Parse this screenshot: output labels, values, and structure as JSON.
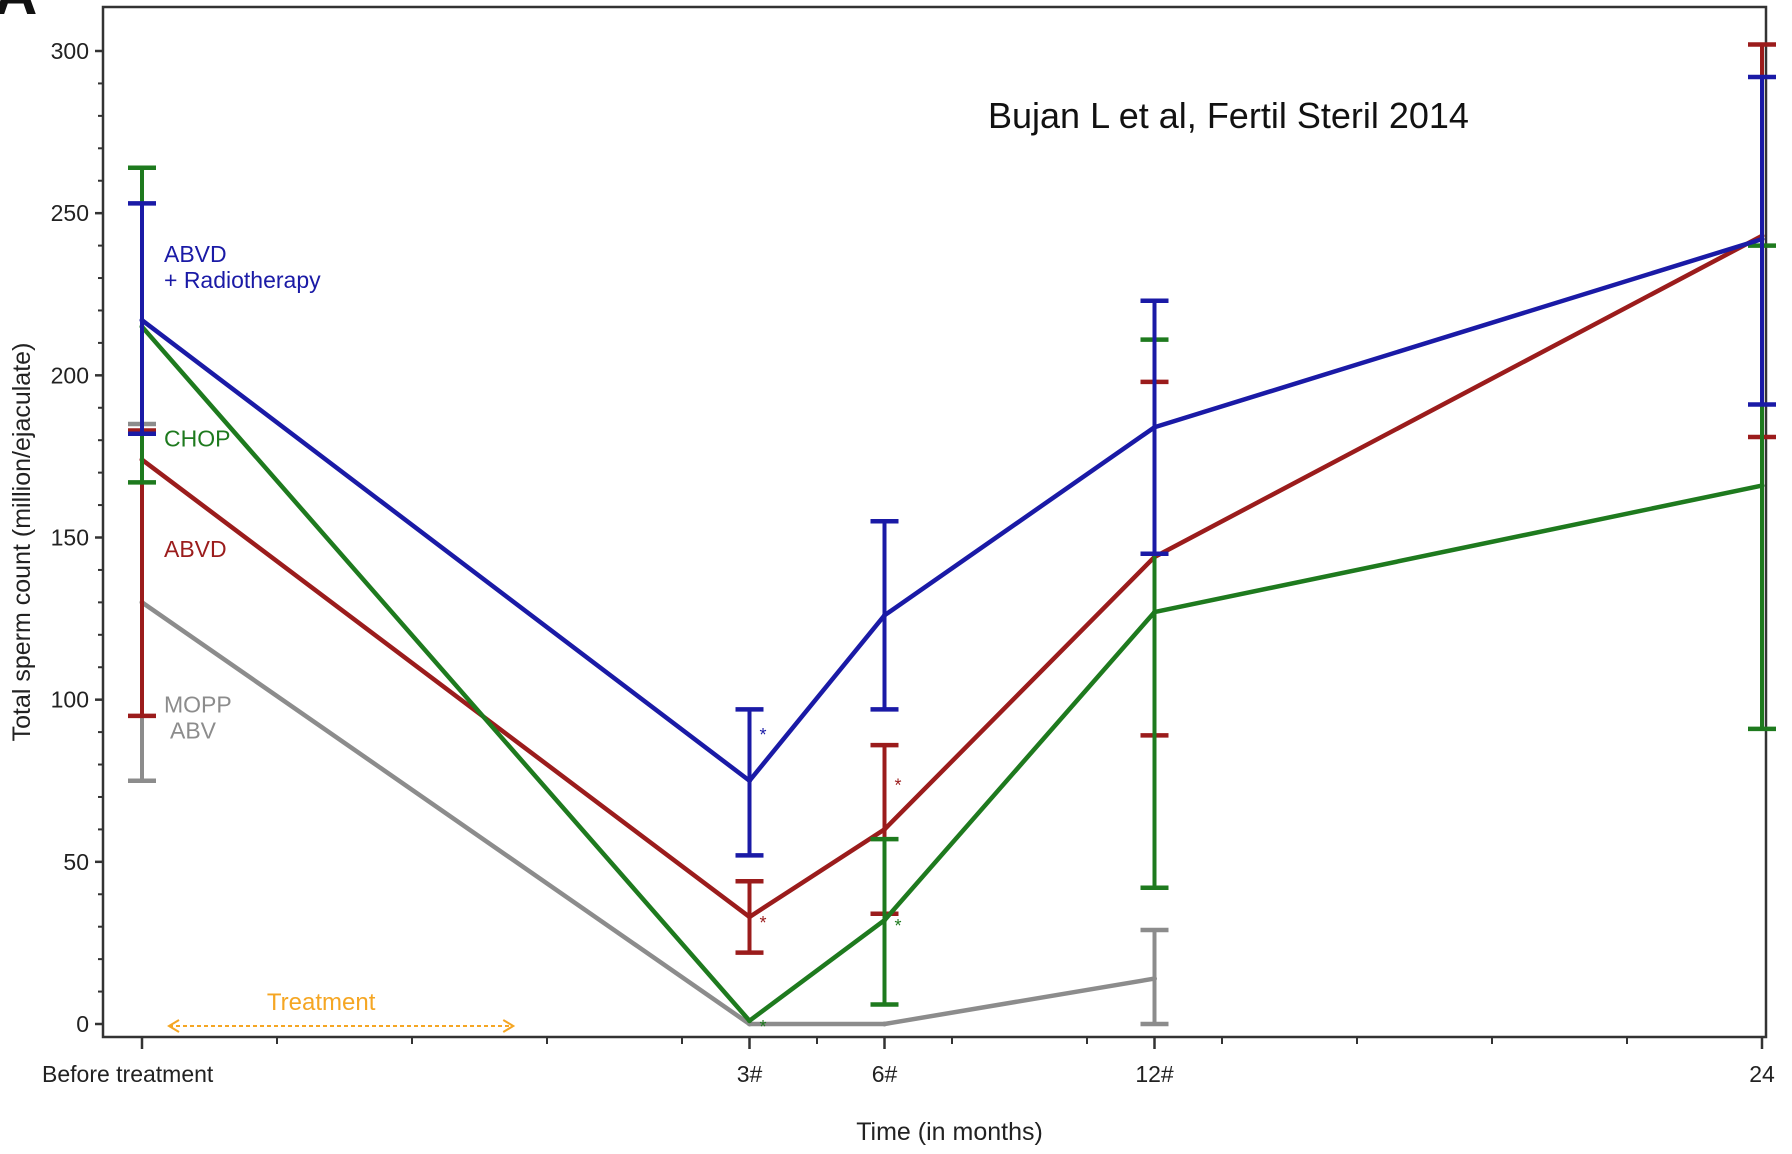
{
  "panel_letter": "A",
  "annotation": "Bujan L et al, Fertil Steril 2014",
  "chart_data": {
    "type": "line",
    "xlabel": "Time (in months)",
    "ylabel": "Total sperm count (million/ejaculate)",
    "xlim": [
      0,
      24
    ],
    "ylim": [
      0,
      300
    ],
    "y_ticks": [
      0,
      50,
      100,
      150,
      200,
      250,
      300
    ],
    "x_ticks": [
      {
        "x": 0,
        "label": "Before treatment"
      },
      {
        "x": 9,
        "label": "3#"
      },
      {
        "x": 11,
        "label": "6#"
      },
      {
        "x": 15,
        "label": "12#"
      },
      {
        "x": 24,
        "label": "24"
      }
    ],
    "x_minor_ticks": [
      2,
      4,
      6,
      8,
      10,
      12,
      14,
      16,
      18,
      20,
      22
    ],
    "grid": false,
    "treatment": {
      "label": "Treatment",
      "x_start": 0.4,
      "x_end": 5.5,
      "y": 0,
      "color": "#f5a623"
    },
    "series": [
      {
        "name": "ABVD",
        "label_line2": "+ Radiotherapy",
        "color": "#1a1aa6",
        "label_y": 235,
        "points": [
          {
            "x": 0,
            "y": 217,
            "lo": 182,
            "hi": 253,
            "star": false
          },
          {
            "x": 9,
            "y": 75,
            "lo": 52,
            "hi": 97,
            "star": true
          },
          {
            "x": 11,
            "y": 126,
            "lo": 97,
            "hi": 155,
            "star": false
          },
          {
            "x": 15,
            "y": 184,
            "lo": 145,
            "hi": 223,
            "star": false
          },
          {
            "x": 24,
            "y": 242,
            "lo": 191,
            "hi": 292,
            "star": false
          }
        ]
      },
      {
        "name": "CHOP",
        "label_line2": "",
        "color": "#1e7a1e",
        "label_y": 178,
        "points": [
          {
            "x": 0,
            "y": 215,
            "lo": 167,
            "hi": 264,
            "star": false
          },
          {
            "x": 9,
            "y": 1,
            "lo": 0,
            "hi": 0,
            "star": true
          },
          {
            "x": 11,
            "y": 32,
            "lo": 6,
            "hi": 57,
            "star": true
          },
          {
            "x": 15,
            "y": 127,
            "lo": 42,
            "hi": 211,
            "star": false
          },
          {
            "x": 24,
            "y": 166,
            "lo": 91,
            "hi": 240,
            "star": false
          }
        ]
      },
      {
        "name": "ABVD",
        "label_line2": "",
        "color": "#9b1c1c",
        "label_y": 144,
        "points": [
          {
            "x": 0,
            "y": 174,
            "lo": 95,
            "hi": 183,
            "star": false
          },
          {
            "x": 9,
            "y": 33,
            "lo": 22,
            "hi": 44,
            "star": true
          },
          {
            "x": 11,
            "y": 60,
            "lo": 34,
            "hi": 86,
            "star": true
          },
          {
            "x": 15,
            "y": 144,
            "lo": 89,
            "hi": 198,
            "star": false
          },
          {
            "x": 24,
            "y": 243,
            "lo": 181,
            "hi": 302,
            "star": false
          }
        ]
      },
      {
        "name": "MOPP",
        "label_line2": "ABV",
        "color": "#8c8c8c",
        "label_y": 96,
        "points": [
          {
            "x": 0,
            "y": 130,
            "lo": 75,
            "hi": 185,
            "star": false
          },
          {
            "x": 9,
            "y": 0,
            "lo": 0,
            "hi": 0,
            "star": false
          },
          {
            "x": 11,
            "y": 0,
            "lo": 0,
            "hi": 0,
            "star": false
          },
          {
            "x": 15,
            "y": 14,
            "lo": 0,
            "hi": 29,
            "star": false
          }
        ]
      }
    ]
  }
}
